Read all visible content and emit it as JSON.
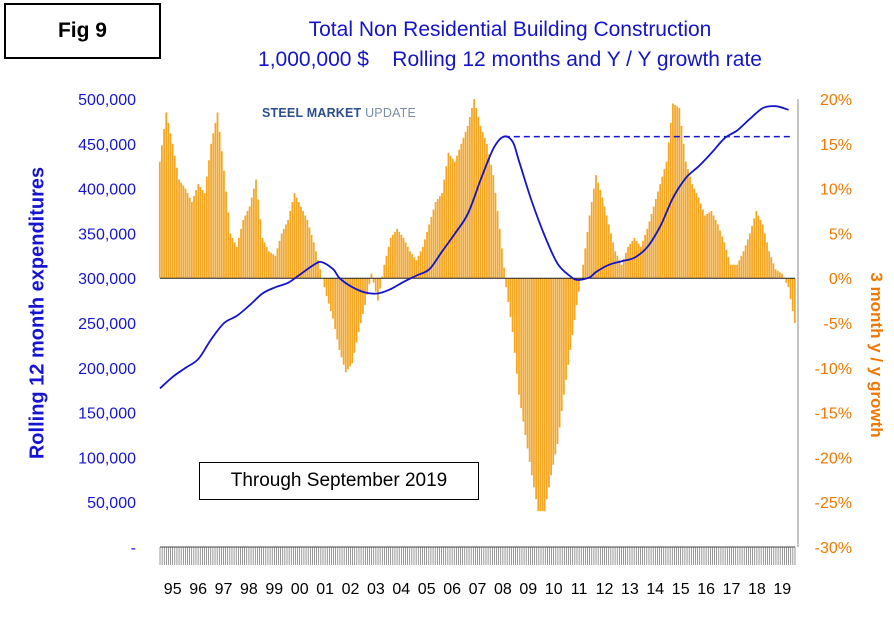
{
  "figure_label": "Fig 9",
  "title_line1": "Total Non Residential Building Construction",
  "title_line2": "1,000,000 $    Rolling 12 months and Y / Y growth rate",
  "logo_text_a": "STEEL MARKET",
  "logo_text_b": " UPDATE",
  "annotation": "Through September 2019",
  "colors": {
    "line": "#1414c8",
    "bars": "#f5a623",
    "left_axis": "#1414d2",
    "right_axis": "#f07800"
  },
  "chart_data": {
    "type": "bar+line",
    "y_left_label": "Rolling 12 month expenditures",
    "y_right_label": "3 month y / y growth",
    "y_left_ticks": [
      "-",
      "50,000",
      "100,000",
      "150,000",
      "200,000",
      "250,000",
      "300,000",
      "350,000",
      "400,000",
      "450,000",
      "500,000"
    ],
    "y_left_range": [
      0,
      500000
    ],
    "y_right_ticks": [
      "-30%",
      "-25%",
      "-20%",
      "-15%",
      "-10%",
      "-5%",
      "0%",
      "5%",
      "10%",
      "15%",
      "20%"
    ],
    "y_right_range": [
      -30,
      20
    ],
    "x_ticks": [
      "95",
      "96",
      "97",
      "98",
      "99",
      "00",
      "01",
      "02",
      "03",
      "04",
      "05",
      "06",
      "07",
      "08",
      "09",
      "10",
      "11",
      "12",
      "13",
      "14",
      "15",
      "16",
      "17",
      "18",
      "19"
    ],
    "x_range": [
      1995,
      2019.75
    ],
    "growth_bars": [
      [
        1995.0,
        13
      ],
      [
        1995.25,
        18.5
      ],
      [
        1995.5,
        15
      ],
      [
        1995.75,
        11
      ],
      [
        1996.0,
        10
      ],
      [
        1996.25,
        8.5
      ],
      [
        1996.5,
        10.5
      ],
      [
        1996.75,
        9.5
      ],
      [
        1997.0,
        15
      ],
      [
        1997.25,
        18.5
      ],
      [
        1997.5,
        12
      ],
      [
        1997.75,
        5
      ],
      [
        1998.0,
        3.5
      ],
      [
        1998.25,
        6.5
      ],
      [
        1998.5,
        8
      ],
      [
        1998.75,
        11
      ],
      [
        1998.9,
        7
      ],
      [
        1999.0,
        4.5
      ],
      [
        1999.25,
        3
      ],
      [
        1999.5,
        2.5
      ],
      [
        1999.75,
        5
      ],
      [
        2000.0,
        6.5
      ],
      [
        2000.25,
        9.5
      ],
      [
        2000.5,
        8
      ],
      [
        2000.75,
        6.5
      ],
      [
        2001.0,
        4
      ],
      [
        2001.25,
        1
      ],
      [
        2001.5,
        -2
      ],
      [
        2001.75,
        -4.5
      ],
      [
        2002.0,
        -8
      ],
      [
        2002.25,
        -10.5
      ],
      [
        2002.5,
        -9.5
      ],
      [
        2002.75,
        -6
      ],
      [
        2003.0,
        -3
      ],
      [
        2003.25,
        0.5
      ],
      [
        2003.5,
        -2.5
      ],
      [
        2003.75,
        1.5
      ],
      [
        2004.0,
        4.5
      ],
      [
        2004.25,
        5.5
      ],
      [
        2004.5,
        4.5
      ],
      [
        2004.75,
        3
      ],
      [
        2005.0,
        2
      ],
      [
        2005.25,
        3.5
      ],
      [
        2005.5,
        6
      ],
      [
        2005.75,
        8.5
      ],
      [
        2006.0,
        9.5
      ],
      [
        2006.25,
        14
      ],
      [
        2006.5,
        13
      ],
      [
        2006.75,
        15
      ],
      [
        2007.0,
        17
      ],
      [
        2007.25,
        20
      ],
      [
        2007.5,
        17
      ],
      [
        2007.75,
        15
      ],
      [
        2008.0,
        11.5
      ],
      [
        2008.25,
        5.5
      ],
      [
        2008.5,
        -1
      ],
      [
        2008.75,
        -6
      ],
      [
        2009.0,
        -13
      ],
      [
        2009.25,
        -17.5
      ],
      [
        2009.5,
        -22
      ],
      [
        2009.75,
        -26
      ],
      [
        2010.0,
        -26
      ],
      [
        2010.25,
        -22
      ],
      [
        2010.5,
        -18.5
      ],
      [
        2010.75,
        -13
      ],
      [
        2011.0,
        -8
      ],
      [
        2011.25,
        -3
      ],
      [
        2011.5,
        1.5
      ],
      [
        2011.75,
        7
      ],
      [
        2012.0,
        11.5
      ],
      [
        2012.25,
        9
      ],
      [
        2012.5,
        6
      ],
      [
        2012.75,
        3
      ],
      [
        2013.0,
        1.5
      ],
      [
        2013.25,
        3.5
      ],
      [
        2013.5,
        4.5
      ],
      [
        2013.75,
        3.5
      ],
      [
        2014.0,
        5.5
      ],
      [
        2014.25,
        8
      ],
      [
        2014.5,
        10.5
      ],
      [
        2014.75,
        13
      ],
      [
        2015.0,
        19.5
      ],
      [
        2015.25,
        19
      ],
      [
        2015.5,
        13
      ],
      [
        2015.75,
        10.5
      ],
      [
        2016.0,
        9
      ],
      [
        2016.25,
        7
      ],
      [
        2016.5,
        7.5
      ],
      [
        2016.75,
        6
      ],
      [
        2017.0,
        4
      ],
      [
        2017.25,
        1.5
      ],
      [
        2017.5,
        1.5
      ],
      [
        2017.75,
        3
      ],
      [
        2018.0,
        5
      ],
      [
        2018.25,
        7.5
      ],
      [
        2018.5,
        6
      ],
      [
        2018.75,
        3
      ],
      [
        2019.0,
        1
      ],
      [
        2019.25,
        0.5
      ],
      [
        2019.5,
        -1
      ],
      [
        2019.75,
        -5
      ]
    ],
    "rolling_12mo_line": [
      [
        1995.0,
        177000
      ],
      [
        1995.5,
        190000
      ],
      [
        1996.0,
        200000
      ],
      [
        1996.5,
        210000
      ],
      [
        1997.0,
        232000
      ],
      [
        1997.5,
        250000
      ],
      [
        1998.0,
        258000
      ],
      [
        1998.5,
        270000
      ],
      [
        1999.0,
        283000
      ],
      [
        1999.5,
        290000
      ],
      [
        2000.0,
        295000
      ],
      [
        2000.5,
        305000
      ],
      [
        2001.0,
        315000
      ],
      [
        2001.3,
        318000
      ],
      [
        2001.75,
        310000
      ],
      [
        2002.0,
        300000
      ],
      [
        2002.5,
        290000
      ],
      [
        2003.0,
        284000
      ],
      [
        2003.5,
        283000
      ],
      [
        2004.0,
        288000
      ],
      [
        2004.5,
        296000
      ],
      [
        2005.0,
        303000
      ],
      [
        2005.5,
        310000
      ],
      [
        2006.0,
        330000
      ],
      [
        2006.5,
        350000
      ],
      [
        2007.0,
        372000
      ],
      [
        2007.5,
        410000
      ],
      [
        2008.0,
        445000
      ],
      [
        2008.4,
        458000
      ],
      [
        2008.75,
        452000
      ],
      [
        2009.0,
        430000
      ],
      [
        2009.5,
        385000
      ],
      [
        2010.0,
        347000
      ],
      [
        2010.5,
        316000
      ],
      [
        2011.0,
        302000
      ],
      [
        2011.3,
        298000
      ],
      [
        2011.75,
        301000
      ],
      [
        2012.0,
        307000
      ],
      [
        2012.5,
        315000
      ],
      [
        2013.0,
        319000
      ],
      [
        2013.5,
        323000
      ],
      [
        2014.0,
        335000
      ],
      [
        2014.5,
        358000
      ],
      [
        2015.0,
        390000
      ],
      [
        2015.5,
        412000
      ],
      [
        2016.0,
        425000
      ],
      [
        2016.5,
        440000
      ],
      [
        2017.0,
        456000
      ],
      [
        2017.5,
        465000
      ],
      [
        2018.0,
        478000
      ],
      [
        2018.5,
        490000
      ],
      [
        2019.0,
        492000
      ],
      [
        2019.5,
        488000
      ]
    ],
    "reference_line_value": 458000
  }
}
